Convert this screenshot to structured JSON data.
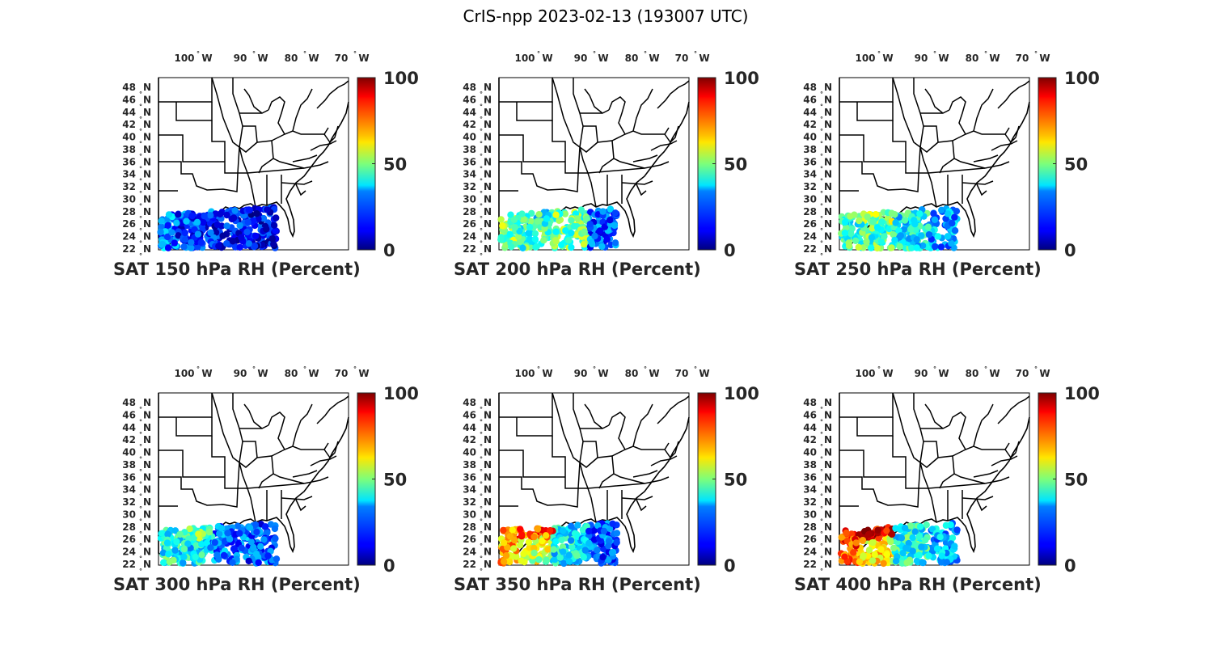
{
  "figure": {
    "title": "CrIS-npp 2023-02-13 (193007 UTC)"
  },
  "chart_data": [
    {
      "type": "scatter",
      "level_hpa": 150,
      "title": "SAT 150 hPa RH (Percent)",
      "xticklabels": [
        "100",
        "90",
        "80",
        "70"
      ],
      "xtick_unit": "W",
      "yticklabels": [
        "48",
        "46",
        "44",
        "42",
        "40",
        "38",
        "36",
        "34",
        "32",
        "30",
        "28",
        "26",
        "24",
        "22"
      ],
      "ytick_unit": "N",
      "colorbar": {
        "min": 0,
        "max": 100,
        "ticks": [
          "0",
          "50",
          "100"
        ],
        "colormap": "jet"
      },
      "rh_estimate": {
        "west_edge": 25,
        "coast": 20,
        "interior": 14,
        "east": 12
      }
    },
    {
      "type": "scatter",
      "level_hpa": 200,
      "title": "SAT 200 hPa RH (Percent)",
      "xticklabels": [
        "100",
        "90",
        "80",
        "70"
      ],
      "xtick_unit": "W",
      "yticklabels": [
        "48",
        "46",
        "44",
        "42",
        "40",
        "38",
        "36",
        "34",
        "32",
        "30",
        "28",
        "26",
        "24",
        "22"
      ],
      "ytick_unit": "N",
      "colorbar": {
        "min": 0,
        "max": 100,
        "ticks": [
          "0",
          "50",
          "100"
        ],
        "colormap": "jet"
      },
      "rh_estimate": {
        "west_edge": 50,
        "coast": 40,
        "interior": 48,
        "east": 22
      }
    },
    {
      "type": "scatter",
      "level_hpa": 250,
      "title": "SAT 250 hPa RH (Percent)",
      "xticklabels": [
        "100",
        "90",
        "80",
        "70"
      ],
      "xtick_unit": "W",
      "yticklabels": [
        "48",
        "46",
        "44",
        "42",
        "40",
        "38",
        "36",
        "34",
        "32",
        "30",
        "28",
        "26",
        "24",
        "22"
      ],
      "ytick_unit": "N",
      "colorbar": {
        "min": 0,
        "max": 100,
        "ticks": [
          "0",
          "50",
          "100"
        ],
        "colormap": "jet"
      },
      "rh_estimate": {
        "west_edge": 42,
        "coast": 52,
        "interior": 38,
        "east": 28
      }
    },
    {
      "type": "scatter",
      "level_hpa": 300,
      "title": "SAT 300 hPa RH (Percent)",
      "xticklabels": [
        "100",
        "90",
        "80",
        "70"
      ],
      "xtick_unit": "W",
      "yticklabels": [
        "48",
        "46",
        "44",
        "42",
        "40",
        "38",
        "36",
        "34",
        "32",
        "30",
        "28",
        "26",
        "24",
        "22"
      ],
      "ytick_unit": "N",
      "colorbar": {
        "min": 0,
        "max": 100,
        "ticks": [
          "0",
          "50",
          "100"
        ],
        "colormap": "jet"
      },
      "rh_estimate": {
        "west_edge": 40,
        "coast": 48,
        "interior": 24,
        "east": 20
      }
    },
    {
      "type": "scatter",
      "level_hpa": 350,
      "title": "SAT 350 hPa RH (Percent)",
      "xticklabels": [
        "100",
        "90",
        "80",
        "70"
      ],
      "xtick_unit": "W",
      "yticklabels": [
        "48",
        "46",
        "44",
        "42",
        "40",
        "38",
        "36",
        "34",
        "32",
        "30",
        "28",
        "26",
        "24",
        "22"
      ],
      "ytick_unit": "N",
      "colorbar": {
        "min": 0,
        "max": 100,
        "ticks": [
          "0",
          "50",
          "100"
        ],
        "colormap": "jet"
      },
      "rh_estimate": {
        "west_edge": 70,
        "coast": 78,
        "interior": 36,
        "east": 22
      }
    },
    {
      "type": "scatter",
      "level_hpa": 400,
      "title": "SAT 400 hPa RH (Percent)",
      "xticklabels": [
        "100",
        "90",
        "80",
        "70"
      ],
      "xtick_unit": "W",
      "yticklabels": [
        "48",
        "46",
        "44",
        "42",
        "40",
        "38",
        "36",
        "34",
        "32",
        "30",
        "28",
        "26",
        "24",
        "22"
      ],
      "ytick_unit": "N",
      "colorbar": {
        "min": 0,
        "max": 100,
        "ticks": [
          "0",
          "50",
          "100"
        ],
        "colormap": "jet"
      },
      "rh_estimate": {
        "west_edge": 80,
        "coast": 90,
        "interior": 40,
        "east": 30
      }
    }
  ]
}
